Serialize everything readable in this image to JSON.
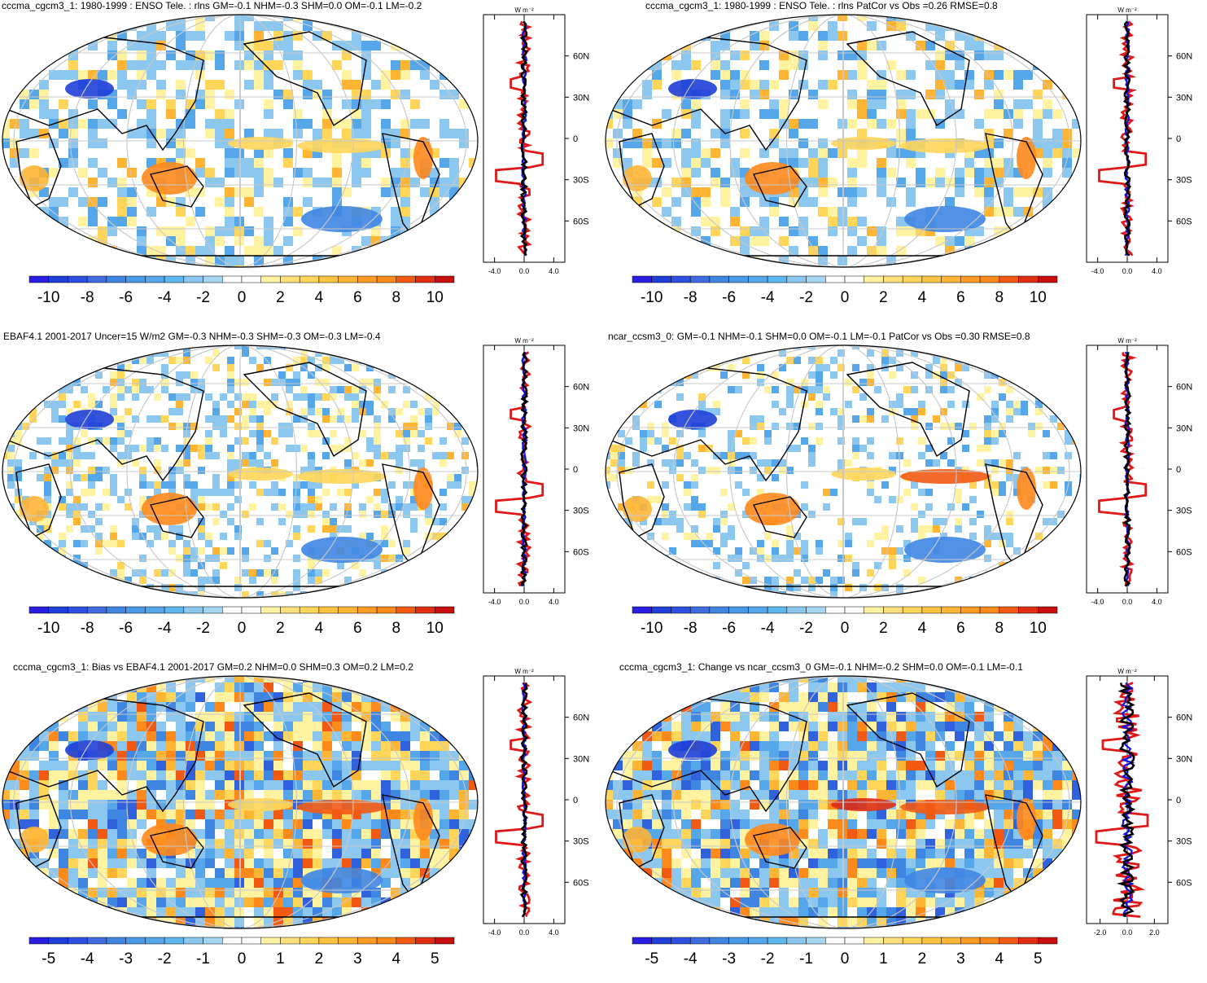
{
  "panels": [
    {
      "title": "cccma_cgcm3_1: 1980-1999 : ENSO Tele. : rlns GM=-0.1 NHM=-0.3 SHM=0.0 OM=-0.1 LM=-0.2",
      "colorbar_labels": [
        "-10",
        "-8",
        "-6",
        "-4",
        "-2",
        "0",
        "2",
        "4",
        "6",
        "8",
        "10"
      ],
      "zonal_xticks": [
        "-4.0",
        "0.0",
        "4.0"
      ],
      "zonal_range": [
        -5.5,
        5.5
      ],
      "zonal_unit": "W m⁻²",
      "lat_labels": [
        "60N",
        "30N",
        "0",
        "30S",
        "60S"
      ]
    },
    {
      "title": "cccma_cgcm3_1: 1980-1999 : ENSO Tele. : rlns PatCor vs Obs =0.26 RMSE=0.8",
      "colorbar_labels": [
        "-10",
        "-8",
        "-6",
        "-4",
        "-2",
        "0",
        "2",
        "4",
        "6",
        "8",
        "10"
      ],
      "zonal_xticks": [
        "-4.0",
        "0.0",
        "4.0"
      ],
      "zonal_range": [
        -5.5,
        5.5
      ],
      "zonal_unit": "W m⁻²",
      "lat_labels": [
        "60N",
        "30N",
        "0",
        "30S",
        "60S"
      ]
    },
    {
      "title": "EBAF4.1 2001-2017 Uncer=15 W/m2 GM=-0.3 NHM=-0.3 SHM=-0.3 OM=-0.3 LM=-0.4",
      "colorbar_labels": [
        "-10",
        "-8",
        "-6",
        "-4",
        "-2",
        "0",
        "2",
        "4",
        "6",
        "8",
        "10"
      ],
      "zonal_xticks": [
        "-4.0",
        "0.0",
        "4.0"
      ],
      "zonal_range": [
        -5.5,
        5.5
      ],
      "zonal_unit": "W m⁻²",
      "lat_labels": [
        "60N",
        "30N",
        "0",
        "30S",
        "60S"
      ]
    },
    {
      "title": "ncar_ccsm3_0: GM=-0.1 NHM=-0.1 SHM=0.0 OM=-0.1 LM=-0.1 PatCor vs Obs =0.30 RMSE=0.8",
      "colorbar_labels": [
        "-10",
        "-8",
        "-6",
        "-4",
        "-2",
        "0",
        "2",
        "4",
        "6",
        "8",
        "10"
      ],
      "zonal_xticks": [
        "-4.0",
        "0.0",
        "4.0"
      ],
      "zonal_range": [
        -5.5,
        5.5
      ],
      "zonal_unit": "W m⁻²",
      "lat_labels": [
        "60N",
        "30N",
        "0",
        "30S",
        "60S"
      ]
    },
    {
      "title": "cccma_cgcm3_1: Bias vs EBAF4.1 2001-2017 GM=0.2 NHM=0.0 SHM=0.3 OM=0.2 LM=0.2",
      "colorbar_labels": [
        "-5",
        "-4",
        "-3",
        "-2",
        "-1",
        "0",
        "1",
        "2",
        "3",
        "4",
        "5"
      ],
      "zonal_xticks": [
        "-4.0",
        "0.0",
        "4.0"
      ],
      "zonal_range": [
        -5.5,
        5.5
      ],
      "zonal_unit": "W m⁻²",
      "lat_labels": [
        "60N",
        "30N",
        "0",
        "30S",
        "60S"
      ]
    },
    {
      "title": "cccma_cgcm3_1: Change vs ncar_ccsm3_0 GM=-0.1 NHM=-0.2 SHM=0.0 OM=-0.1 LM=-0.1",
      "colorbar_labels": [
        "-5",
        "-4",
        "-3",
        "-2",
        "-1",
        "0",
        "1",
        "2",
        "3",
        "4",
        "5"
      ],
      "zonal_xticks": [
        "-2.0",
        "0.0",
        "2.0"
      ],
      "zonal_range": [
        -3.0,
        3.0
      ],
      "zonal_unit": "W m⁻²",
      "lat_labels": [
        "60N",
        "30N",
        "0",
        "30S",
        "60S"
      ]
    }
  ],
  "palette": [
    "#2a1fe0",
    "#1f3fd8",
    "#2f62dc",
    "#3f86e3",
    "#56a6ea",
    "#8cc7ef",
    "#ffffff",
    "#ffffff",
    "#fff2a0",
    "#ffd65a",
    "#ffb534",
    "#ff8a1c",
    "#f25a14",
    "#e02e12",
    "#c80f0f"
  ],
  "series_colors": {
    "model": "#e01818",
    "obs": "#1010e0",
    "mean": "#000000"
  }
}
